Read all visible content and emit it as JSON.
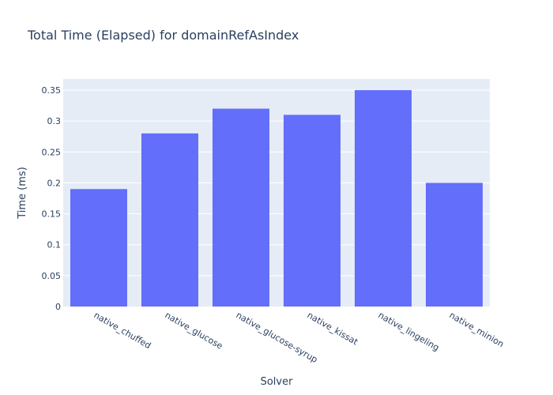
{
  "chart_data": {
    "type": "bar",
    "title": "Total Time (Elapsed) for domainRefAsIndex",
    "xlabel": "Solver",
    "ylabel": "Time (ms)",
    "categories": [
      "native_chuffed",
      "native_glucose",
      "native_glucose-syrup",
      "native_kissat",
      "native_lingeling",
      "native_minion"
    ],
    "values": [
      0.19,
      0.28,
      0.32,
      0.31,
      0.35,
      0.2
    ],
    "ylim": [
      0,
      0.368
    ],
    "yticks": [
      0,
      0.05,
      0.1,
      0.15,
      0.2,
      0.25,
      0.3,
      0.35
    ],
    "ytick_labels": [
      "0",
      "0.05",
      "0.1",
      "0.15",
      "0.2",
      "0.25",
      "0.3",
      "0.35"
    ],
    "grid": true,
    "colors": {
      "bar": "#636efa",
      "plot_bg": "#e5ecf6",
      "grid": "#ffffff",
      "text": "#2a3f5f"
    }
  }
}
